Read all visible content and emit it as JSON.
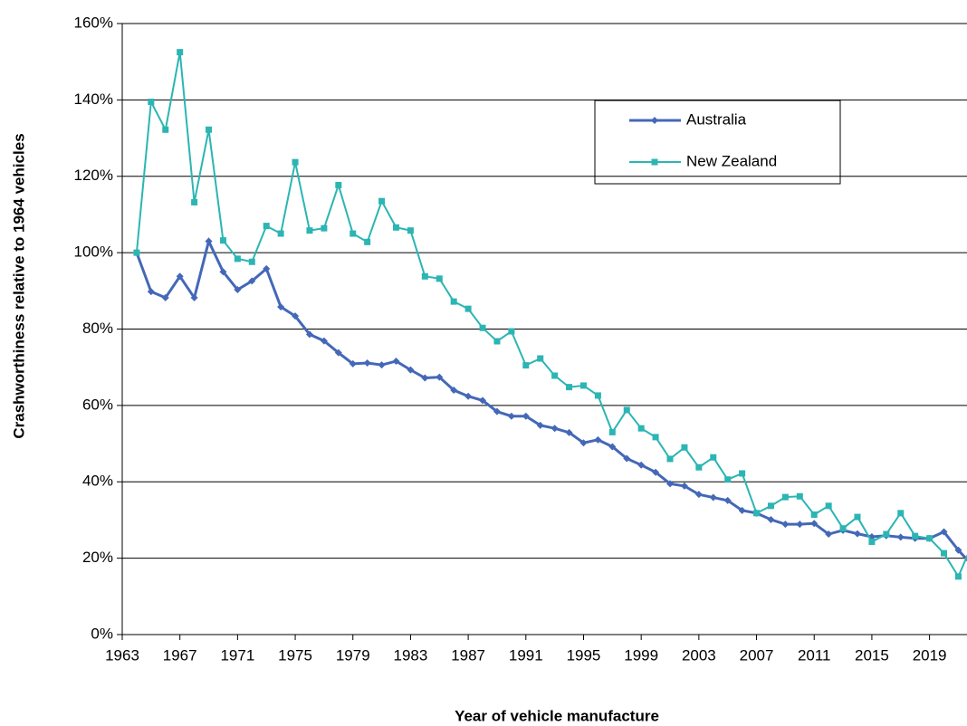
{
  "chart_data": {
    "type": "line",
    "y_label": "Crashworthiness relative to 1964 vehicles",
    "x_label": "Year of vehicle manufacture",
    "x": [
      1964,
      1965,
      1966,
      1967,
      1968,
      1969,
      1970,
      1971,
      1972,
      1973,
      1974,
      1975,
      1976,
      1977,
      1978,
      1979,
      1980,
      1981,
      1982,
      1983,
      1984,
      1985,
      1986,
      1987,
      1988,
      1989,
      1990,
      1991,
      1992,
      1993,
      1994,
      1995,
      1996,
      1997,
      1998,
      1999,
      2000,
      2001,
      2002,
      2003,
      2004,
      2005,
      2006,
      2007,
      2008,
      2009,
      2010,
      2011,
      2012,
      2013,
      2014,
      2015,
      2016,
      2017,
      2018,
      2019,
      2020,
      2021,
      2022
    ],
    "series": [
      {
        "name": "Australia",
        "color": "#4468b8",
        "marker": "diamond",
        "values": [
          100,
          89.8,
          88.2,
          93.8,
          88.2,
          103,
          95,
          90.3,
          92.6,
          95.8,
          85.8,
          83.4,
          78.6,
          76.9,
          73.8,
          70.9,
          71.1,
          70.6,
          71.6,
          69.3,
          67.2,
          67.4,
          64,
          62.4,
          61.3,
          58.4,
          57.2,
          57.2,
          54.8,
          54,
          52.9,
          50.2,
          51,
          49.2,
          46.1,
          44.4,
          42.5,
          39.5,
          38.9,
          36.7,
          35.9,
          35.1,
          32.5,
          31.8,
          30.1,
          28.9,
          28.9,
          29.1,
          26.3,
          27.3,
          26.4,
          25.6,
          25.9,
          25.5,
          25.2,
          25.2,
          26.9,
          22.1,
          18
        ]
      },
      {
        "name": "New Zealand",
        "color": "#2bb5b3",
        "marker": "square",
        "values": [
          100,
          139.5,
          132.2,
          152.5,
          113.2,
          132.2,
          103.2,
          98.4,
          97.6,
          107,
          105,
          123.7,
          105.8,
          106.4,
          117.7,
          105,
          102.8,
          113.5,
          106.6,
          105.8,
          93.8,
          93.2,
          87.2,
          85.3,
          80.3,
          76.8,
          79.4,
          70.5,
          72.3,
          67.8,
          64.8,
          65.2,
          62.6,
          53,
          58.8,
          54,
          51.7,
          46,
          49,
          43.8,
          46.4,
          40.6,
          42.2,
          31.8,
          33.7,
          36,
          36.2,
          31.4,
          33.7,
          27.8,
          30.8,
          24.3,
          26.3,
          31.8,
          25.8,
          25.2,
          21.3,
          15.2,
          24
        ]
      }
    ],
    "xlim": [
      1963,
      2021.6
    ],
    "xticks": [
      1963,
      1967,
      1971,
      1975,
      1979,
      1983,
      1987,
      1991,
      1995,
      1999,
      2003,
      2007,
      2011,
      2015,
      2019
    ],
    "ylim": [
      0,
      160
    ],
    "yticks": [
      {
        "value": 0,
        "label": "0%"
      },
      {
        "value": 20,
        "label": "20%"
      },
      {
        "value": 40,
        "label": "40%"
      },
      {
        "value": 60,
        "label": "60%"
      },
      {
        "value": 80,
        "label": "80%"
      },
      {
        "value": 100,
        "label": "100%"
      },
      {
        "value": 120,
        "label": "120%"
      },
      {
        "value": 140,
        "label": "140%"
      },
      {
        "value": 160,
        "label": "160%"
      }
    ],
    "grid": true
  }
}
